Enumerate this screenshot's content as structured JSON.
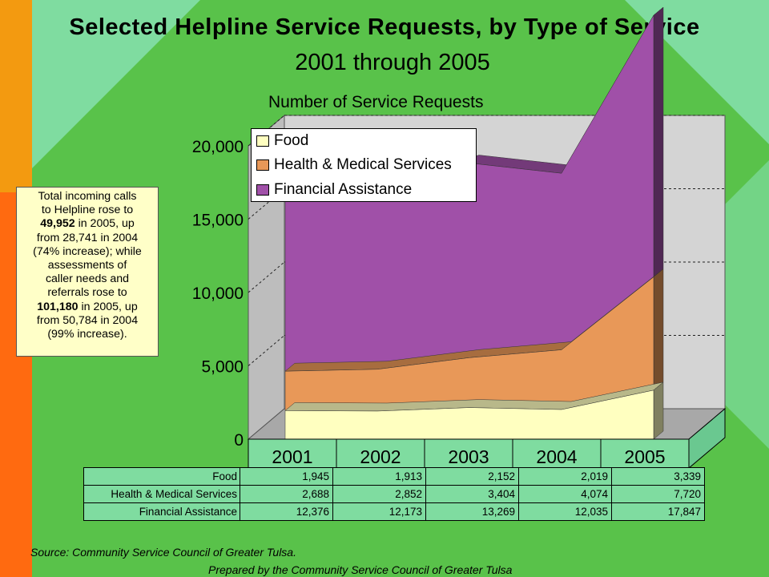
{
  "title": "Selected Helpline Service Requests, by Type of Service",
  "subtitle": "2001 through 2005",
  "chart_data": {
    "type": "area",
    "stacked": true,
    "three_d": true,
    "categories": [
      "2001",
      "2002",
      "2003",
      "2004",
      "2005"
    ],
    "ylabel": "Number of Service Requests",
    "ylim": [
      0,
      20000
    ],
    "yticks": [
      "0",
      "5,000",
      "10,000",
      "15,000",
      "20,000"
    ],
    "grid": true,
    "legend_position": "top-left",
    "series": [
      {
        "name": "Food",
        "values": [
          1945,
          1913,
          2152,
          2019,
          3339
        ],
        "display": [
          "1,945",
          "1,913",
          "2,152",
          "2,019",
          "3,339"
        ],
        "color": "#ffffc0"
      },
      {
        "name": "Health & Medical Services",
        "values": [
          2688,
          2852,
          3404,
          4074,
          7720
        ],
        "display": [
          "2,688",
          "2,852",
          "3,404",
          "4,074",
          "7,720"
        ],
        "color": "#e89858"
      },
      {
        "name": "Financial Assistance",
        "values": [
          12376,
          12173,
          13269,
          12035,
          17847
        ],
        "display": [
          "12,376",
          "12,173",
          "13,269",
          "12,035",
          "17,847"
        ],
        "color": "#a050a8"
      }
    ]
  },
  "callout": {
    "line1": "Total incoming calls",
    "line2": "to Helpline rose to",
    "bold1": "49,952",
    "line3": " in 2005, up",
    "line4": "from 28,741 in 2004",
    "line5": "(74% increase); while",
    "line6": "assessments of",
    "line7": "caller needs and",
    "line8": "referrals rose to",
    "bold2": "101,180",
    "line9": " in 2005, up",
    "line10": "from 50,784 in 2004",
    "line11": "(99% increase)."
  },
  "source": "Source: Community Service Council of Greater Tulsa.",
  "prepared": "Prepared by the Community Service Council of Greater Tulsa"
}
